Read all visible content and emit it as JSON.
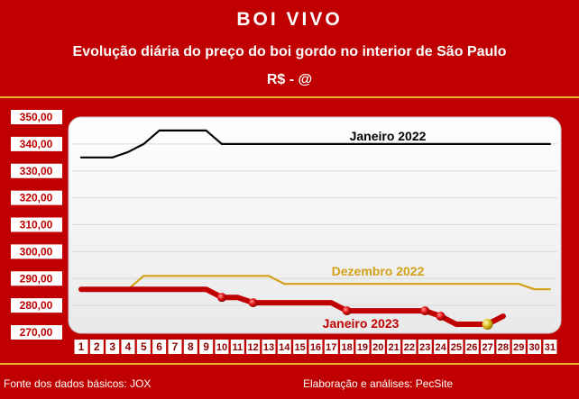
{
  "header": {
    "title": "BOI VIVO",
    "subtitle": "Evolução diária do preço do boi gordo no interior de São Paulo",
    "unit": "R$ - @"
  },
  "footer": {
    "source": "Fonte dos dados básicos: JOX",
    "credit": "Elaboração e análises: PecSite"
  },
  "colors": {
    "background": "#c00000",
    "plot_area": "#ffffff",
    "janeiro_2022": "#000000",
    "dezembro_2022": "#d4a017",
    "janeiro_2023": "#c00000"
  },
  "chart_data": {
    "type": "line",
    "title": "",
    "xlabel": "",
    "ylabel": "",
    "ylim": [
      270,
      350
    ],
    "yticks": [
      "270,00",
      "280,00",
      "290,00",
      "300,00",
      "310,00",
      "320,00",
      "330,00",
      "340,00",
      "350,00"
    ],
    "grid": true,
    "x": [
      1,
      2,
      3,
      4,
      5,
      6,
      7,
      8,
      9,
      10,
      11,
      12,
      13,
      14,
      15,
      16,
      17,
      18,
      19,
      20,
      21,
      22,
      23,
      24,
      25,
      26,
      27,
      28,
      29,
      30,
      31
    ],
    "series": [
      {
        "name": "Janeiro 2022",
        "values": [
          335,
          335,
          335,
          337,
          340,
          345,
          345,
          345,
          345,
          340,
          340,
          340,
          340,
          340,
          340,
          340,
          340,
          340,
          340,
          340,
          340,
          340,
          340,
          340,
          340,
          340,
          340,
          340,
          340,
          340,
          340
        ]
      },
      {
        "name": "Dezembro 2022",
        "values": [
          286,
          286,
          286,
          286,
          291,
          291,
          291,
          291,
          291,
          291,
          291,
          291,
          291,
          288,
          288,
          288,
          288,
          288,
          288,
          288,
          288,
          288,
          288,
          288,
          288,
          288,
          288,
          288,
          288,
          286,
          286
        ]
      },
      {
        "name": "Janeiro 2023",
        "values": [
          286,
          286,
          286,
          286,
          286,
          286,
          286,
          286,
          286,
          283,
          283,
          281,
          281,
          281,
          281,
          281,
          281,
          278,
          278,
          278,
          278,
          278,
          278,
          276,
          273,
          273,
          273,
          276,
          null,
          null,
          null
        ],
        "markers": [
          10,
          12,
          18,
          23,
          24,
          27
        ]
      }
    ]
  }
}
